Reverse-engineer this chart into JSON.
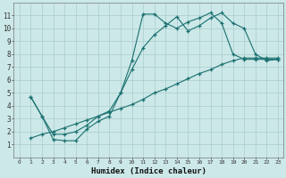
{
  "xlabel": "Humidex (Indice chaleur)",
  "bg_color": "#cce8e8",
  "grid_color": "#aacccc",
  "line_color": "#1a7070",
  "xlim": [
    -0.5,
    23.5
  ],
  "ylim": [
    0,
    12
  ],
  "xticks": [
    0,
    1,
    2,
    3,
    4,
    5,
    6,
    7,
    8,
    9,
    10,
    11,
    12,
    13,
    14,
    15,
    16,
    17,
    18,
    19,
    20,
    21,
    22,
    23
  ],
  "yticks": [
    1,
    2,
    3,
    4,
    5,
    6,
    7,
    8,
    9,
    10,
    11
  ],
  "line1_x": [
    1,
    2,
    3,
    4,
    5,
    6,
    7,
    8,
    9,
    10,
    11,
    12,
    13,
    14,
    15,
    16,
    17,
    18,
    19,
    20,
    21,
    22,
    23
  ],
  "line1_y": [
    4.7,
    3.2,
    1.4,
    1.3,
    1.3,
    2.2,
    2.8,
    3.2,
    5.0,
    7.5,
    11.1,
    11.1,
    10.4,
    10.0,
    10.5,
    10.8,
    11.2,
    10.4,
    8.0,
    7.6,
    7.6,
    7.6,
    7.6
  ],
  "line2_x": [
    1,
    2,
    3,
    4,
    5,
    6,
    7,
    8,
    9,
    10,
    11,
    12,
    13,
    14,
    15,
    16,
    17,
    18,
    19,
    20,
    21,
    22,
    23
  ],
  "line2_y": [
    4.7,
    3.2,
    1.8,
    1.8,
    2.0,
    2.5,
    3.2,
    3.6,
    5.0,
    6.8,
    8.5,
    9.5,
    10.2,
    10.9,
    9.8,
    10.2,
    10.8,
    11.2,
    10.4,
    10.0,
    8.0,
    7.5,
    7.6
  ],
  "line3_x": [
    1,
    2,
    3,
    4,
    5,
    6,
    7,
    8,
    9,
    10,
    11,
    12,
    13,
    14,
    15,
    16,
    17,
    18,
    19,
    20,
    21,
    22,
    23
  ],
  "line3_y": [
    1.5,
    1.8,
    2.0,
    2.3,
    2.6,
    2.9,
    3.2,
    3.5,
    3.8,
    4.1,
    4.5,
    5.0,
    5.3,
    5.7,
    6.1,
    6.5,
    6.8,
    7.2,
    7.5,
    7.7,
    7.7,
    7.7,
    7.7
  ]
}
